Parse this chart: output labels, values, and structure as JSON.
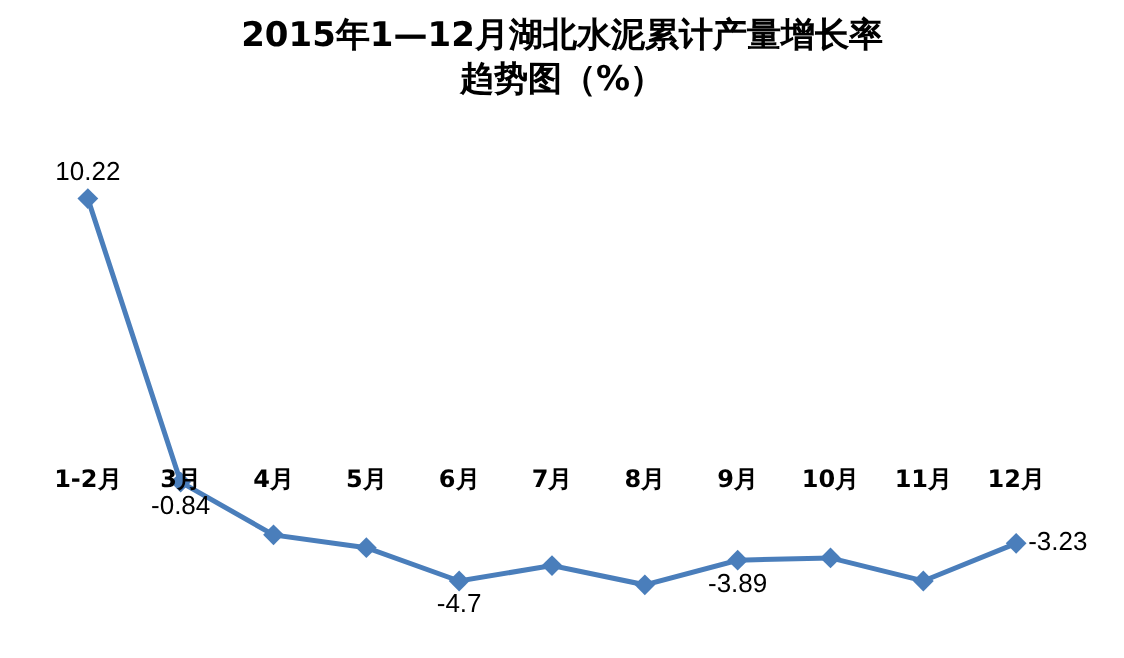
{
  "chart_data": {
    "type": "line",
    "title": "2015年1—12月湖北水泥累计产量增长率趋势图（%）",
    "categories": [
      "1-2月",
      "3月",
      "4月",
      "5月",
      "6月",
      "7月",
      "8月",
      "9月",
      "10月",
      "11月",
      "12月"
    ],
    "series": [
      {
        "color": "#4a7ebb",
        "values": [
          10.22,
          -0.84,
          -2.9,
          -3.4,
          -4.7,
          -4.1,
          -4.85,
          -3.89,
          -3.8,
          -4.7,
          -3.23
        ],
        "value_labels": [
          "10.22",
          "-0.84",
          null,
          null,
          "-4.7",
          null,
          null,
          "-3.89",
          null,
          null,
          "-3.23"
        ]
      }
    ],
    "marker": "diamond",
    "line_style": "solid"
  }
}
